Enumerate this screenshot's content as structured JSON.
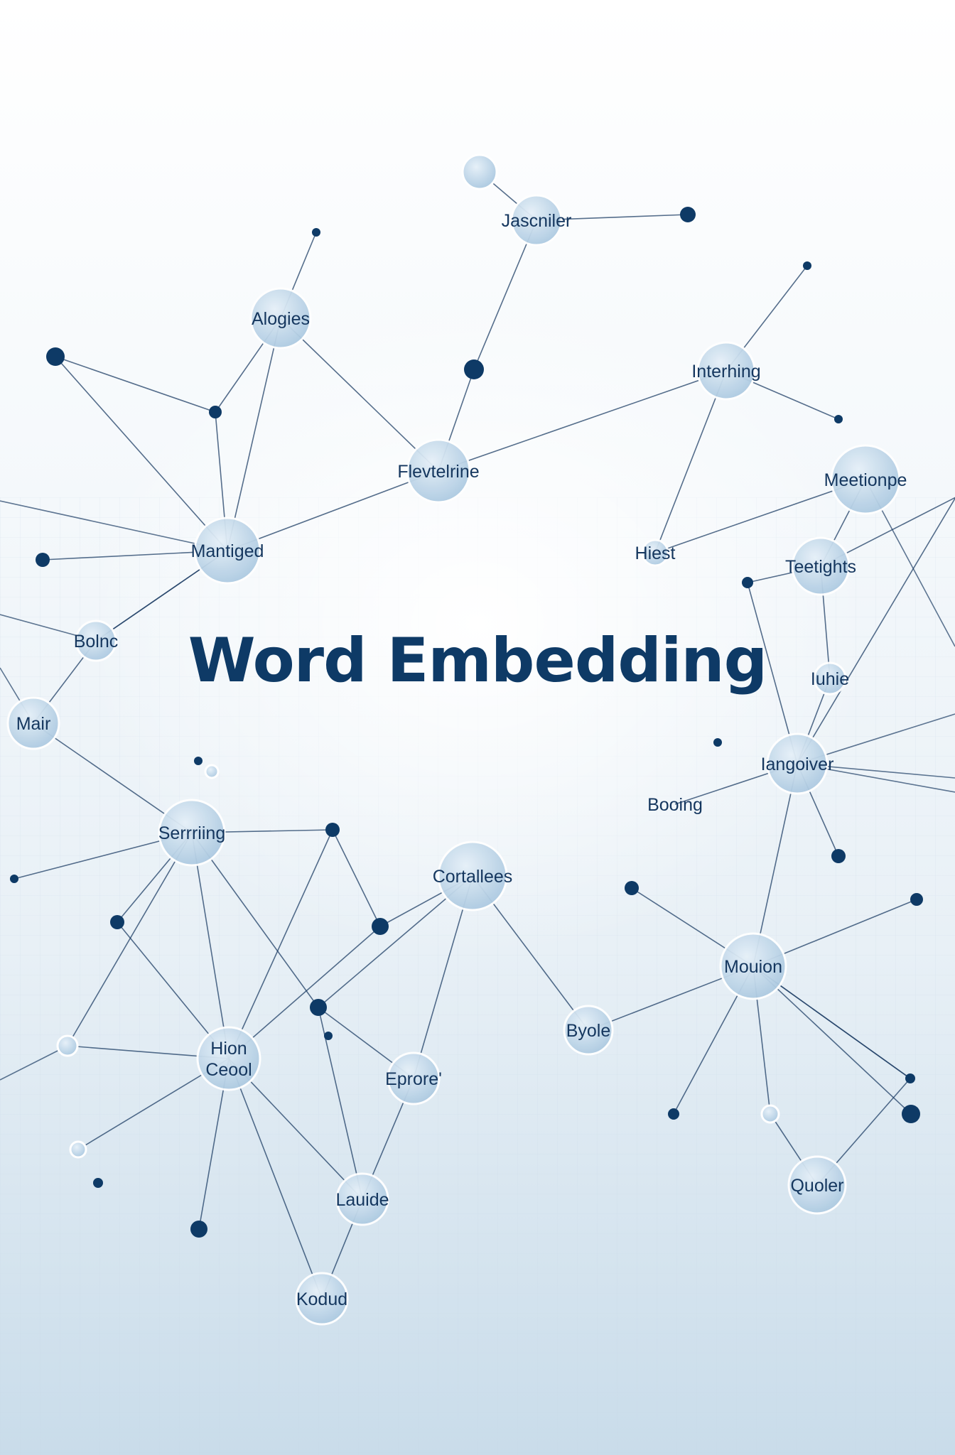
{
  "title": "Word Embedding",
  "colors": {
    "node_fill": "#c0d8ea",
    "node_stroke": "#ffffff",
    "dot_dark": "#0e3a66",
    "edge": "#1f3f66",
    "label": "#14365e",
    "title": "#0e3a66"
  },
  "nodes": [
    {
      "id": "jasc",
      "label": "Jascniler"
    },
    {
      "id": "alog",
      "label": "Alogies"
    },
    {
      "id": "inter",
      "label": "Interhing"
    },
    {
      "id": "fev",
      "label": "Flevtelrine"
    },
    {
      "id": "meet",
      "label": "Meetionpe"
    },
    {
      "id": "mant",
      "label": "Mantiged"
    },
    {
      "id": "hiest",
      "label": "Hiest"
    },
    {
      "id": "teet",
      "label": "Teetights"
    },
    {
      "id": "bolnc",
      "label": "Bolnc"
    },
    {
      "id": "iuhie",
      "label": "Iuhie"
    },
    {
      "id": "mair",
      "label": "Mair"
    },
    {
      "id": "lang",
      "label": "Iangoiver"
    },
    {
      "id": "booing",
      "label": "Booing"
    },
    {
      "id": "serr",
      "label": "Serrriing"
    },
    {
      "id": "cort",
      "label": "Cortallees"
    },
    {
      "id": "motion",
      "label": "Mouion"
    },
    {
      "id": "byole",
      "label": "Byole"
    },
    {
      "id": "hion",
      "label": "Hion\nCeool"
    },
    {
      "id": "eprore",
      "label": "Eprore'"
    },
    {
      "id": "quoler",
      "label": "Quoler"
    },
    {
      "id": "lauide",
      "label": "Lauide"
    },
    {
      "id": "kodud",
      "label": "Kodud"
    }
  ]
}
